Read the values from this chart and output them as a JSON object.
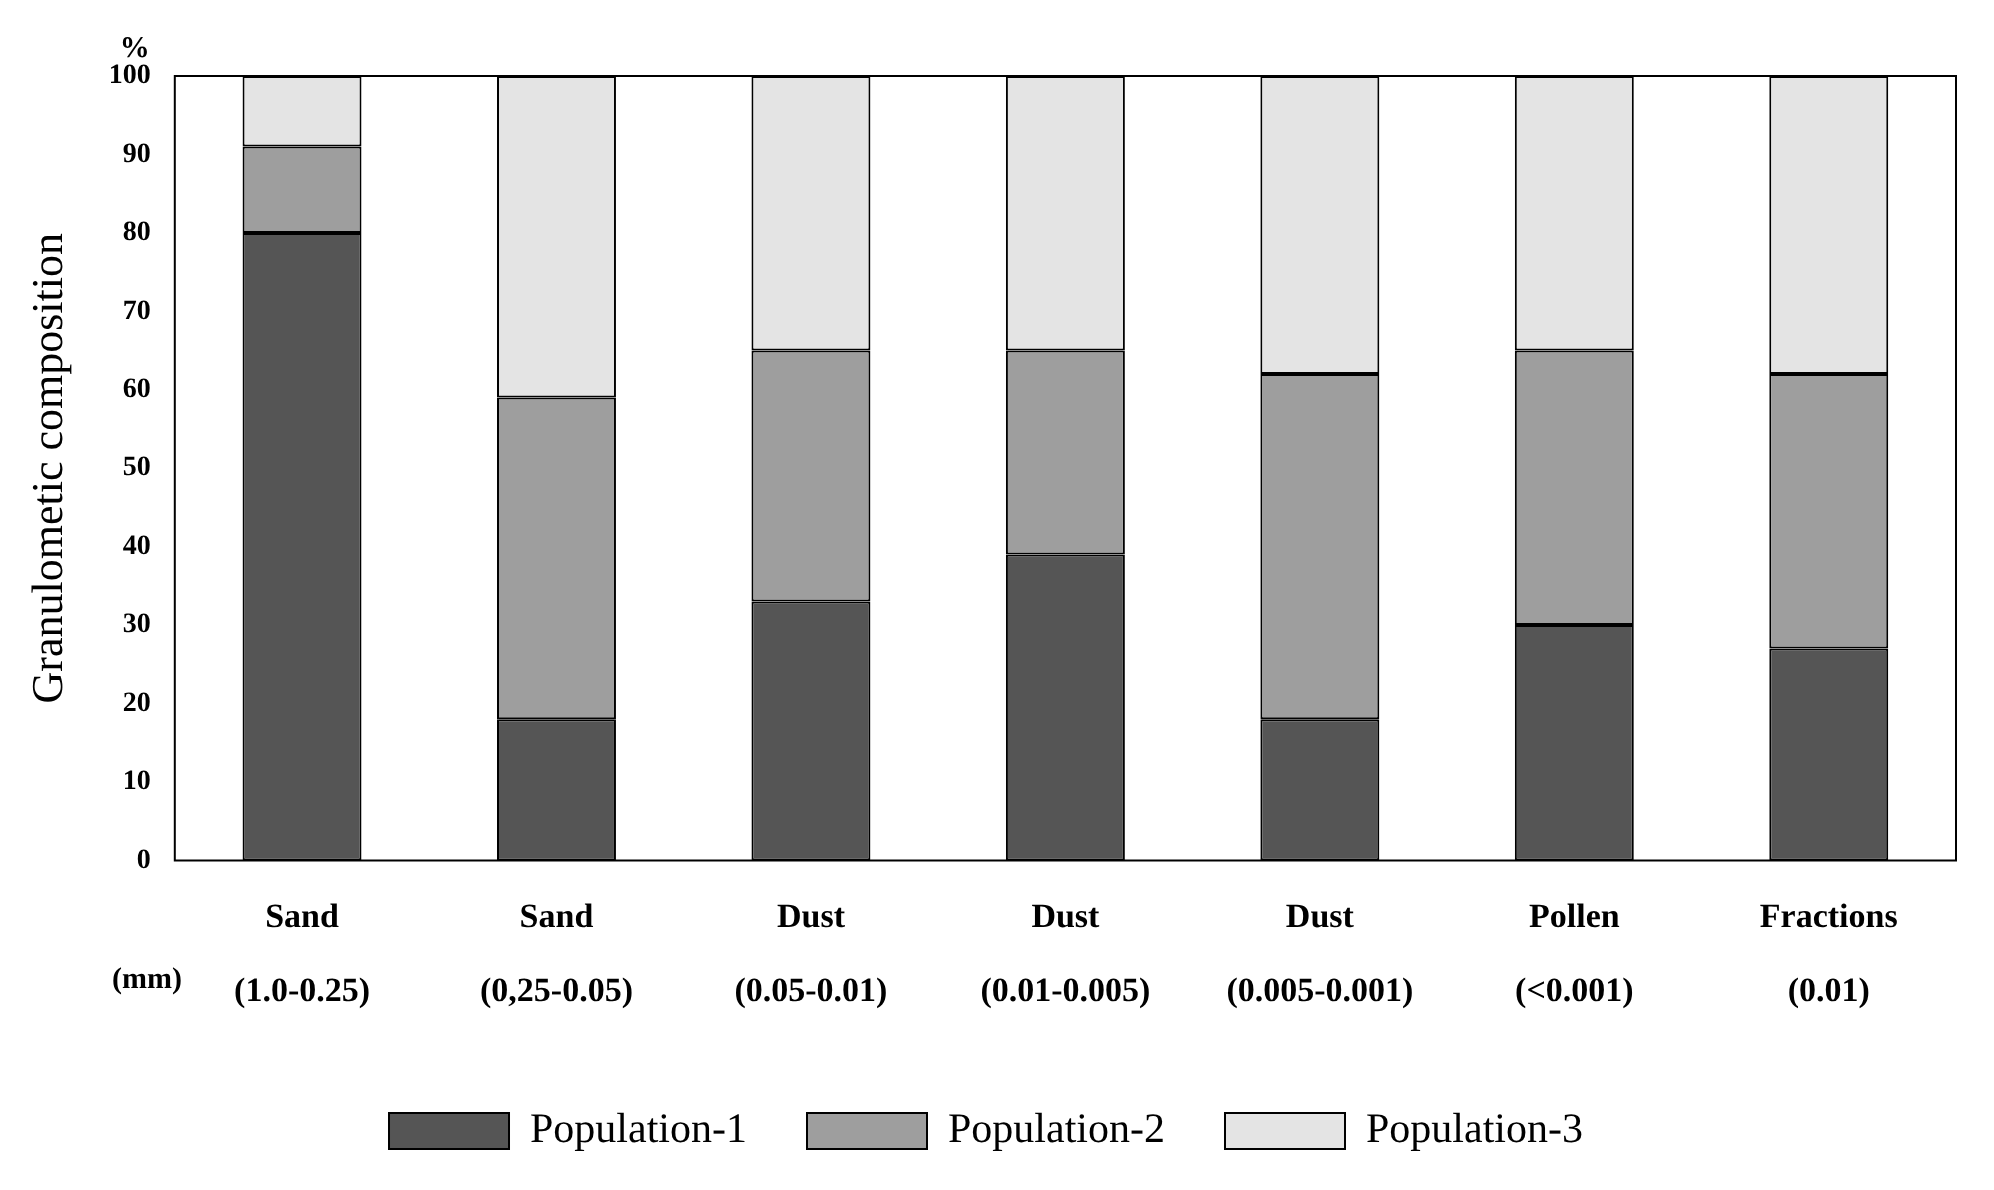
{
  "chart_data": {
    "type": "bar",
    "stacked": true,
    "ylabel": "Granulometic composition",
    "annotations": [
      "%",
      "(mm)"
    ],
    "categories": [
      "Sand\n(1.0-0.25)",
      "Sand\n(0,25-0.05)",
      "Dust\n(0.05-0.01)",
      "Dust\n(0.01-0.005)",
      "Dust\n(0.005-0.001)",
      "Pollen\n(<0.001)",
      "Fractions\n(0.01)"
    ],
    "series": [
      {
        "name": "Population-1",
        "color": "#555555",
        "values": [
          80,
          18,
          33,
          39,
          18,
          30,
          27
        ]
      },
      {
        "name": "Population-2",
        "color": "#9e9e9e",
        "values": [
          11,
          41,
          32,
          26,
          44,
          35,
          35
        ]
      },
      {
        "name": "Population-3",
        "color": "#e4e4e4",
        "values": [
          9,
          41,
          35,
          35,
          38,
          35,
          38
        ]
      }
    ],
    "ylim": [
      0,
      100
    ],
    "yticks": [
      0,
      10,
      20,
      30,
      40,
      50,
      60,
      70,
      80,
      90,
      100
    ],
    "grid": false,
    "legend": "bottom"
  }
}
